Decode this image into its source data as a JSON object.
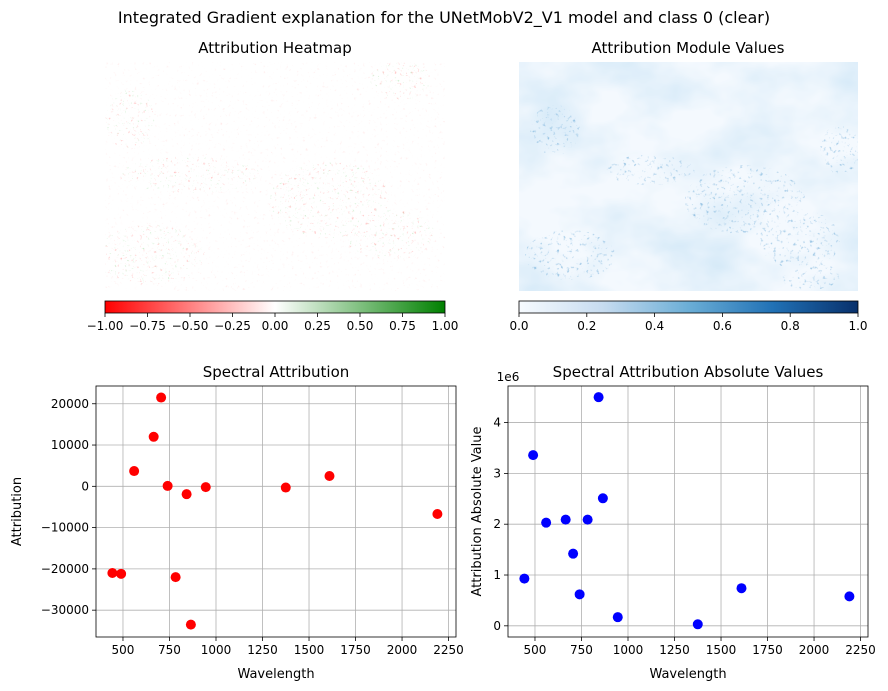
{
  "figure": {
    "suptitle": "Integrated Gradient explanation for the UNetMobV2_V1 model and class 0 (clear)"
  },
  "heatmap_left": {
    "title": "Attribution Heatmap",
    "colormap": [
      "#ff0000",
      "#ffffff",
      "#008000"
    ],
    "colorbar_ticks": [
      "−1.00",
      "−0.75",
      "−0.50",
      "−0.25",
      "0.00",
      "0.25",
      "0.50",
      "0.75",
      "1.00"
    ]
  },
  "heatmap_right": {
    "title": "Attribution Module Values",
    "colormap": [
      "#f7fbff",
      "#c6dbef",
      "#6baed6",
      "#2171b5",
      "#08306b"
    ],
    "colorbar_ticks": [
      "0.0",
      "0.2",
      "0.4",
      "0.6",
      "0.8",
      "1.0"
    ]
  },
  "chart_data": [
    {
      "type": "scatter",
      "title": "Spectral Attribution",
      "xlabel": "Wavelength",
      "ylabel": "Attribution",
      "color": "#ff0000",
      "grid": true,
      "xlim": [
        355,
        2290
      ],
      "ylim": [
        -36500,
        24300
      ],
      "xticks": [
        500,
        750,
        1000,
        1250,
        1500,
        1750,
        2000,
        2250
      ],
      "xtick_labels": [
        "500",
        "750",
        "1000",
        "1250",
        "1500",
        "1750",
        "2000",
        "2250"
      ],
      "yticks": [
        -30000,
        -20000,
        -10000,
        0,
        10000,
        20000
      ],
      "ytick_labels": [
        "−30000",
        "−20000",
        "−10000",
        "0",
        "10000",
        "20000"
      ],
      "x": [
        443,
        490,
        560,
        665,
        705,
        740,
        783,
        842,
        865,
        945,
        1375,
        1610,
        2190
      ],
      "y": [
        -21000,
        -21200,
        3700,
        12000,
        21500,
        100,
        -22000,
        -1900,
        -33500,
        -200,
        -300,
        2500,
        -6700
      ]
    },
    {
      "type": "scatter",
      "title": "Spectral Attribution Absolute Values",
      "xlabel": "Wavelength",
      "ylabel": "Attribution Absolute Value",
      "offset_label": "1e6",
      "color": "#0000ff",
      "grid": true,
      "xlim": [
        355,
        2290
      ],
      "ylim": [
        -0.22,
        4.72
      ],
      "xticks": [
        500,
        750,
        1000,
        1250,
        1500,
        1750,
        2000,
        2250
      ],
      "xtick_labels": [
        "500",
        "750",
        "1000",
        "1250",
        "1500",
        "1750",
        "2000",
        "2250"
      ],
      "yticks": [
        0,
        1,
        2,
        3,
        4
      ],
      "ytick_labels": [
        "0",
        "1",
        "2",
        "3",
        "4"
      ],
      "x": [
        443,
        490,
        560,
        665,
        705,
        740,
        783,
        842,
        865,
        945,
        1375,
        1610,
        2190
      ],
      "y": [
        0.93,
        3.36,
        2.03,
        2.09,
        1.42,
        0.62,
        2.09,
        4.5,
        2.51,
        0.17,
        0.03,
        0.74,
        0.58
      ]
    }
  ]
}
